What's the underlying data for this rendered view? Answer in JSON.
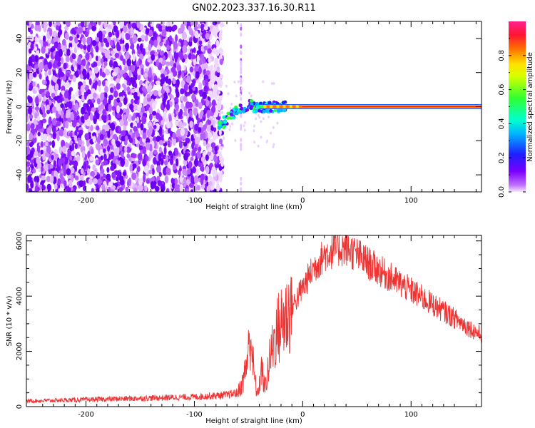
{
  "chart_data": [
    {
      "type": "heatmap",
      "title": "GN02.2023.337.16.30.R11",
      "xlabel": "Height of straight line (km)",
      "ylabel": "Frequency (Hz)",
      "xlim": [
        -255,
        165
      ],
      "ylim": [
        -50,
        50
      ],
      "xticks": [
        -200,
        -100,
        0,
        100
      ],
      "yticks": [
        -40,
        -20,
        0,
        20,
        40
      ],
      "colorbar": {
        "label": "Normalized spectral amplitude",
        "range": [
          0,
          1
        ],
        "ticks": [
          0.0,
          0.2,
          0.4,
          0.6,
          0.8
        ],
        "colormap": "rainbow (purple-blue-cyan-green-yellow-red-magenta)"
      },
      "features": {
        "noise_region_km": [
          -255,
          -78
        ],
        "tone_frequency_hz": 0,
        "tone_start_km": -75,
        "dominant_amplitude": 0.9
      }
    },
    {
      "type": "line",
      "xlabel": "Height of straight line (km)",
      "ylabel": "SNR (10 * v/v)",
      "xlim": [
        -255,
        165
      ],
      "ylim": [
        0,
        6200
      ],
      "xticks": [
        -200,
        -100,
        0,
        100
      ],
      "yticks": [
        0,
        2000,
        4000,
        6000
      ],
      "series": [
        {
          "color": "#ee3333",
          "x": [
            -255,
            -200,
            -150,
            -100,
            -70,
            -60,
            -55,
            -50,
            -48,
            -45,
            -42,
            -40,
            -38,
            -35,
            -30,
            -25,
            -20,
            -15,
            -10,
            0,
            10,
            20,
            30,
            40,
            50,
            60,
            80,
            100,
            120,
            140,
            160,
            165
          ],
          "y": [
            200,
            250,
            300,
            350,
            420,
            500,
            900,
            2000,
            2600,
            1200,
            400,
            800,
            1400,
            600,
            1800,
            2600,
            3000,
            3300,
            3600,
            4300,
            5000,
            5500,
            5700,
            5750,
            5500,
            5200,
            4700,
            4200,
            3700,
            3200,
            2700,
            2600
          ]
        }
      ]
    }
  ]
}
